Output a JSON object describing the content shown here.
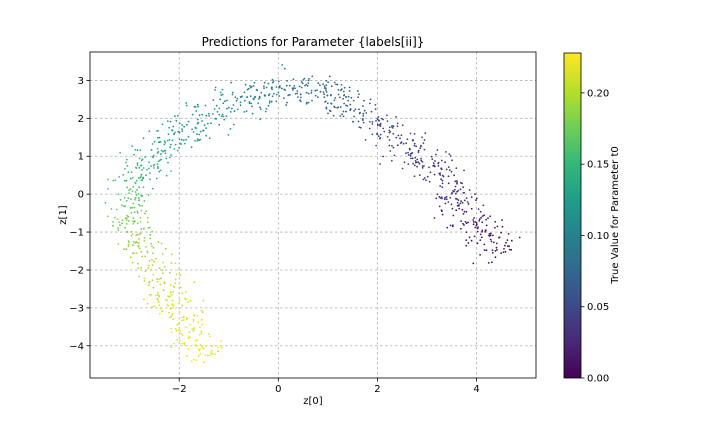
{
  "chart_data": {
    "type": "scatter",
    "title": "Predictions for Parameter {labels[ii]}",
    "xlabel": "z[0]",
    "ylabel": "z[1]",
    "xlim": [
      -3.8,
      5.2
    ],
    "ylim": [
      -4.85,
      3.75
    ],
    "xticks": [
      -2,
      0,
      2,
      4
    ],
    "yticks": [
      -4,
      -3,
      -2,
      -1,
      0,
      1,
      2,
      3
    ],
    "grid": true,
    "colorbar": {
      "label": "True Value for Parameter t0",
      "range": [
        0.0,
        0.228
      ],
      "ticks": [
        0.0,
        0.05,
        0.1,
        0.15,
        0.2
      ],
      "colormap": "viridis"
    },
    "series": [
      {
        "arc_path": [
          {
            "x": -1.4,
            "y": -4.3,
            "value": 0.225
          },
          {
            "x": -1.8,
            "y": -3.6,
            "value": 0.222
          },
          {
            "x": -2.1,
            "y": -2.8,
            "value": 0.215
          },
          {
            "x": -2.5,
            "y": -2.0,
            "value": 0.2
          },
          {
            "x": -2.9,
            "y": -1.0,
            "value": 0.185
          },
          {
            "x": -3.1,
            "y": -0.2,
            "value": 0.17
          },
          {
            "x": -2.8,
            "y": 0.5,
            "value": 0.155
          },
          {
            "x": -2.4,
            "y": 1.2,
            "value": 0.14
          },
          {
            "x": -1.7,
            "y": 1.9,
            "value": 0.12
          },
          {
            "x": -0.8,
            "y": 2.4,
            "value": 0.105
          },
          {
            "x": 0.0,
            "y": 2.8,
            "value": 0.09
          },
          {
            "x": 0.8,
            "y": 2.8,
            "value": 0.08
          },
          {
            "x": 1.5,
            "y": 2.3,
            "value": 0.065
          },
          {
            "x": 2.2,
            "y": 1.6,
            "value": 0.05
          },
          {
            "x": 2.9,
            "y": 1.0,
            "value": 0.04
          },
          {
            "x": 3.4,
            "y": 0.3,
            "value": 0.03
          },
          {
            "x": 3.8,
            "y": -0.5,
            "value": 0.02
          },
          {
            "x": 4.2,
            "y": -1.2,
            "value": 0.012
          },
          {
            "x": 4.6,
            "y": -1.6,
            "value": 0.006
          }
        ],
        "point_count": 1100
      }
    ]
  },
  "colors": {
    "viridis_stops": [
      "#440154",
      "#482878",
      "#3e4989",
      "#31688e",
      "#26828e",
      "#1f9e89",
      "#35b779",
      "#6ece58",
      "#b5de2b",
      "#fde725"
    ]
  }
}
